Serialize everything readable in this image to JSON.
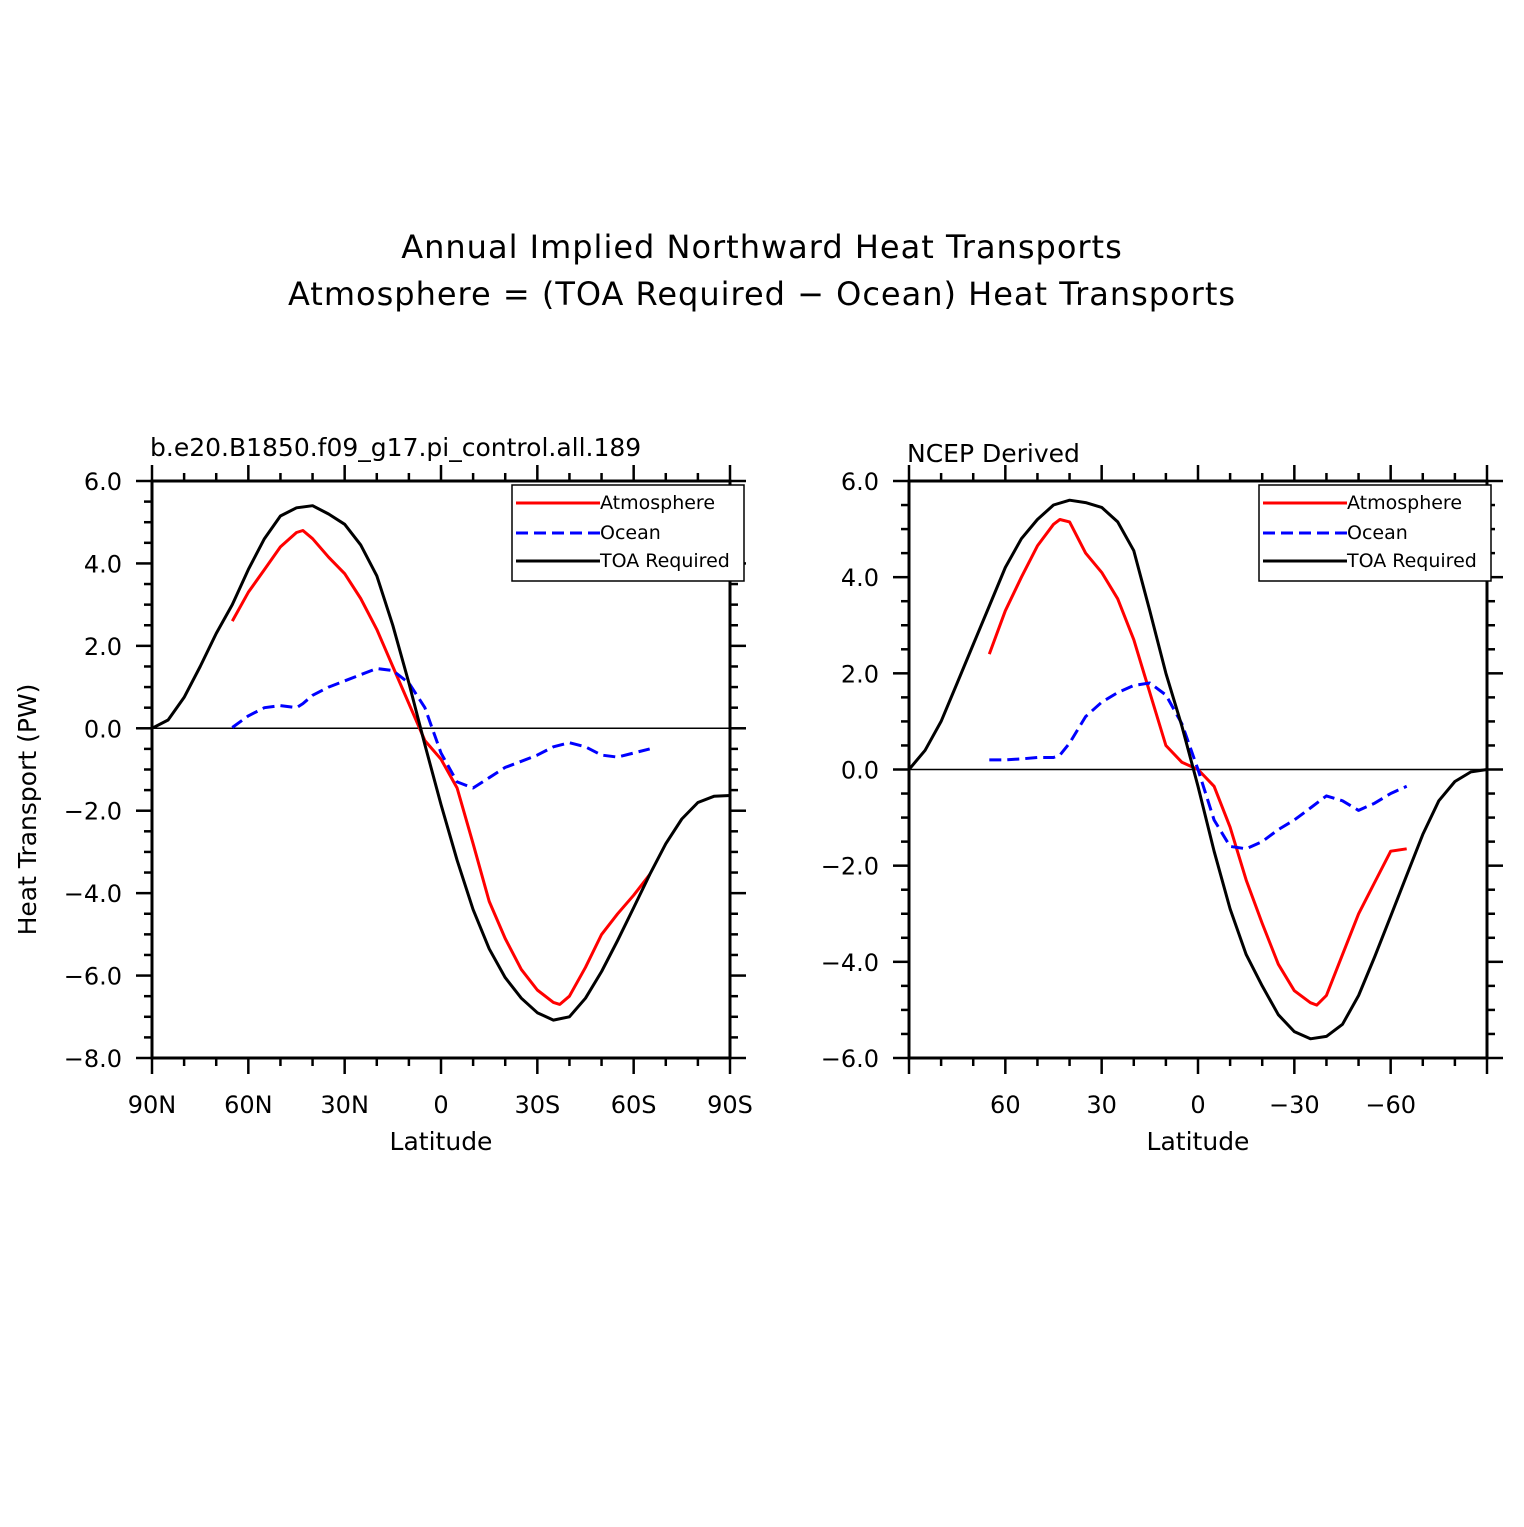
{
  "figure": {
    "title_line1": "Annual Implied Northward Heat Transports",
    "title_line2": "Atmosphere = (TOA Required − Ocean) Heat Transports"
  },
  "colors": {
    "atmosphere": "#ff0000",
    "ocean": "#0000ff",
    "toa": "#000000"
  },
  "chart_data": [
    {
      "type": "line",
      "title": "b.e20.B1850.f09_g17.pi_control.all.189",
      "xlabel": "Latitude",
      "ylabel": "Heat Transport (PW)",
      "xlim": [
        90,
        -90
      ],
      "ylim": [
        -8,
        6
      ],
      "x_ticks": [
        {
          "value": 90,
          "label": "90N"
        },
        {
          "value": 60,
          "label": "60N"
        },
        {
          "value": 30,
          "label": "30N"
        },
        {
          "value": 0,
          "label": "0"
        },
        {
          "value": -30,
          "label": "30S"
        },
        {
          "value": -60,
          "label": "60S"
        },
        {
          "value": -90,
          "label": "90S"
        }
      ],
      "y_ticks": [
        {
          "value": 6,
          "label": "6.0"
        },
        {
          "value": 4,
          "label": "4.0"
        },
        {
          "value": 2,
          "label": "2.0"
        },
        {
          "value": 0,
          "label": "0.0"
        },
        {
          "value": -2,
          "label": "−2.0"
        },
        {
          "value": -4,
          "label": "−4.0"
        },
        {
          "value": -6,
          "label": "−6.0"
        },
        {
          "value": -8,
          "label": "−8.0"
        }
      ],
      "legend": [
        "Atmosphere",
        "Ocean",
        "TOA Required"
      ],
      "legend_position": "top-right",
      "series": [
        {
          "name": "Atmosphere",
          "style": "solid",
          "x": [
            65,
            60,
            55,
            50,
            45,
            43,
            40,
            35,
            30,
            25,
            20,
            15,
            10,
            5,
            0,
            -5,
            -10,
            -15,
            -20,
            -25,
            -30,
            -35,
            -37,
            -40,
            -45,
            -50,
            -55,
            -60,
            -65
          ],
          "y": [
            2.6,
            3.3,
            3.85,
            4.4,
            4.75,
            4.8,
            4.6,
            4.15,
            3.75,
            3.15,
            2.4,
            1.5,
            0.6,
            -0.3,
            -0.75,
            -1.45,
            -2.8,
            -4.2,
            -5.1,
            -5.85,
            -6.35,
            -6.65,
            -6.7,
            -6.5,
            -5.8,
            -5.0,
            -4.5,
            -4.05,
            -3.55
          ]
        },
        {
          "name": "Ocean",
          "style": "dashed",
          "x": [
            65,
            60,
            55,
            50,
            45,
            43,
            40,
            35,
            30,
            25,
            20,
            15,
            10,
            5,
            0,
            -5,
            -10,
            -15,
            -20,
            -25,
            -30,
            -35,
            -40,
            -45,
            -50,
            -55,
            -60,
            -65
          ],
          "y": [
            0.02,
            0.3,
            0.5,
            0.55,
            0.5,
            0.6,
            0.8,
            1.0,
            1.15,
            1.3,
            1.45,
            1.4,
            1.1,
            0.5,
            -0.6,
            -1.3,
            -1.45,
            -1.2,
            -0.95,
            -0.8,
            -0.65,
            -0.45,
            -0.35,
            -0.45,
            -0.65,
            -0.7,
            -0.6,
            -0.5
          ]
        },
        {
          "name": "TOA Required",
          "style": "solid",
          "x": [
            90,
            85,
            80,
            75,
            70,
            65,
            60,
            55,
            50,
            45,
            40,
            35,
            30,
            25,
            20,
            15,
            10,
            5,
            0,
            -5,
            -10,
            -15,
            -20,
            -25,
            -30,
            -35,
            -40,
            -45,
            -50,
            -55,
            -60,
            -65,
            -70,
            -75,
            -80,
            -85,
            -90
          ],
          "y": [
            0.0,
            0.2,
            0.75,
            1.5,
            2.3,
            3.0,
            3.85,
            4.6,
            5.15,
            5.35,
            5.4,
            5.2,
            4.95,
            4.45,
            3.7,
            2.5,
            1.1,
            -0.4,
            -1.85,
            -3.2,
            -4.4,
            -5.35,
            -6.05,
            -6.55,
            -6.9,
            -7.08,
            -7.0,
            -6.55,
            -5.9,
            -5.15,
            -4.35,
            -3.55,
            -2.8,
            -2.2,
            -1.8,
            -1.65,
            -1.63
          ]
        }
      ]
    },
    {
      "type": "line",
      "title": "NCEP Derived",
      "xlabel": "Latitude",
      "ylabel": "",
      "xlim": [
        90,
        -90
      ],
      "ylim": [
        -6,
        6
      ],
      "x_ticks": [
        {
          "value": 60,
          "label": "60"
        },
        {
          "value": 30,
          "label": "30"
        },
        {
          "value": 0,
          "label": "0"
        },
        {
          "value": -30,
          "label": "−30"
        },
        {
          "value": -60,
          "label": "−60"
        }
      ],
      "y_ticks": [
        {
          "value": 6,
          "label": "6.0"
        },
        {
          "value": 4,
          "label": "4.0"
        },
        {
          "value": 2,
          "label": "2.0"
        },
        {
          "value": 0,
          "label": "0.0"
        },
        {
          "value": -2,
          "label": "−2.0"
        },
        {
          "value": -4,
          "label": "−4.0"
        },
        {
          "value": -6,
          "label": "−6.0"
        }
      ],
      "legend": [
        "Atmosphere",
        "Ocean",
        "TOA Required"
      ],
      "legend_position": "top-right",
      "series": [
        {
          "name": "Atmosphere",
          "style": "solid",
          "x": [
            65,
            60,
            55,
            50,
            45,
            43,
            40,
            35,
            30,
            25,
            20,
            15,
            10,
            5,
            0,
            -5,
            -10,
            -15,
            -20,
            -25,
            -30,
            -35,
            -37,
            -40,
            -45,
            -50,
            -55,
            -60,
            -65
          ],
          "y": [
            2.4,
            3.3,
            4.0,
            4.65,
            5.1,
            5.2,
            5.15,
            4.5,
            4.1,
            3.55,
            2.7,
            1.6,
            0.5,
            0.15,
            0.0,
            -0.35,
            -1.2,
            -2.3,
            -3.2,
            -4.05,
            -4.6,
            -4.85,
            -4.9,
            -4.7,
            -3.85,
            -3.0,
            -2.35,
            -1.7,
            -1.65
          ]
        },
        {
          "name": "Ocean",
          "style": "dashed",
          "x": [
            65,
            60,
            55,
            50,
            45,
            43,
            40,
            35,
            30,
            25,
            20,
            15,
            10,
            5,
            0,
            -5,
            -10,
            -15,
            -20,
            -25,
            -30,
            -35,
            -40,
            -45,
            -50,
            -55,
            -60,
            -65
          ],
          "y": [
            0.2,
            0.2,
            0.22,
            0.25,
            0.25,
            0.3,
            0.55,
            1.1,
            1.4,
            1.6,
            1.75,
            1.8,
            1.55,
            0.95,
            0.0,
            -1.05,
            -1.6,
            -1.65,
            -1.5,
            -1.25,
            -1.05,
            -0.8,
            -0.55,
            -0.65,
            -0.85,
            -0.7,
            -0.5,
            -0.35
          ]
        },
        {
          "name": "TOA Required",
          "style": "solid",
          "x": [
            90,
            85,
            80,
            75,
            70,
            65,
            60,
            55,
            50,
            45,
            40,
            35,
            30,
            25,
            20,
            15,
            10,
            5,
            0,
            -5,
            -10,
            -15,
            -20,
            -25,
            -30,
            -35,
            -40,
            -45,
            -50,
            -55,
            -60,
            -65,
            -70,
            -75,
            -80,
            -85,
            -90
          ],
          "y": [
            0.0,
            0.4,
            1.0,
            1.8,
            2.6,
            3.4,
            4.2,
            4.8,
            5.2,
            5.5,
            5.6,
            5.55,
            5.45,
            5.15,
            4.55,
            3.3,
            2.0,
            0.9,
            -0.35,
            -1.7,
            -2.9,
            -3.85,
            -4.5,
            -5.1,
            -5.45,
            -5.6,
            -5.55,
            -5.3,
            -4.7,
            -3.9,
            -3.05,
            -2.2,
            -1.35,
            -0.65,
            -0.25,
            -0.05,
            0.0
          ]
        }
      ]
    }
  ]
}
